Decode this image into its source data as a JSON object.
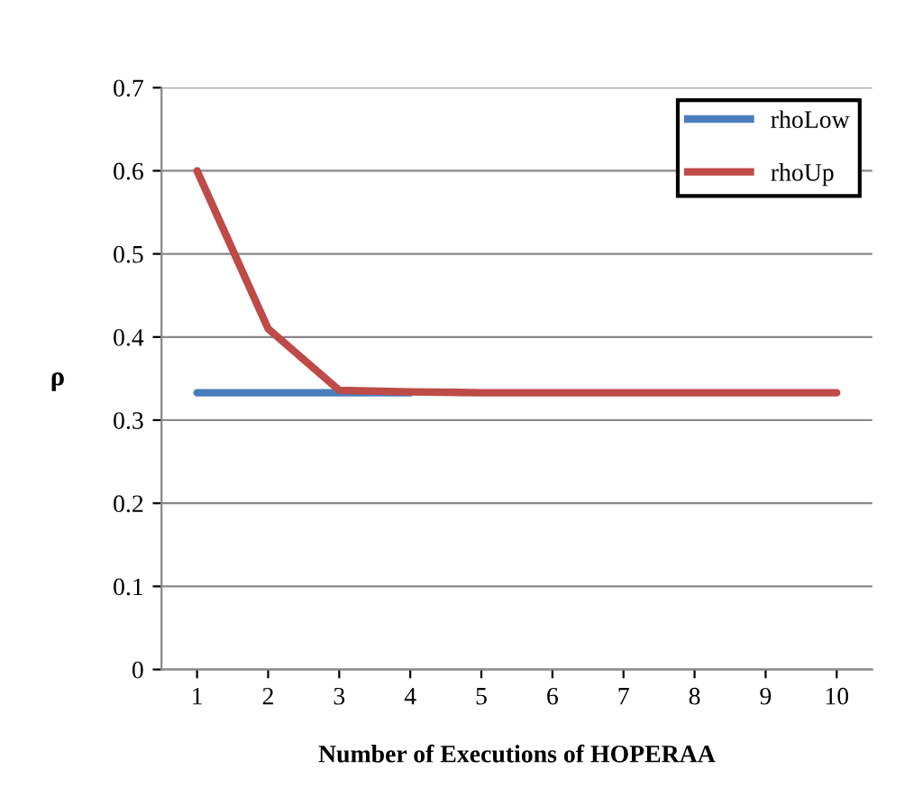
{
  "chart_data": {
    "type": "line",
    "xlabel": "Number of Executions of HOPERAA",
    "ylabel": "ρ",
    "categories": [
      "1",
      "2",
      "3",
      "4",
      "5",
      "6",
      "7",
      "8",
      "9",
      "10"
    ],
    "series": [
      {
        "name": "rhoLow",
        "color": "#4a7ebb",
        "values": [
          0.333,
          0.333,
          0.333,
          0.333,
          null,
          null,
          null,
          null,
          null,
          null
        ]
      },
      {
        "name": "rhoUp",
        "color": "#be4b48",
        "values": [
          0.6,
          0.41,
          0.336,
          0.334,
          0.333,
          0.333,
          0.333,
          0.333,
          0.333,
          0.333
        ]
      }
    ],
    "ylim": [
      0,
      0.7
    ],
    "yticks": [
      0,
      0.1,
      0.2,
      0.3,
      0.4,
      0.5,
      0.6,
      0.7
    ],
    "grid": "y",
    "legend": "top right",
    "marker": "none",
    "line_style": "solid"
  }
}
